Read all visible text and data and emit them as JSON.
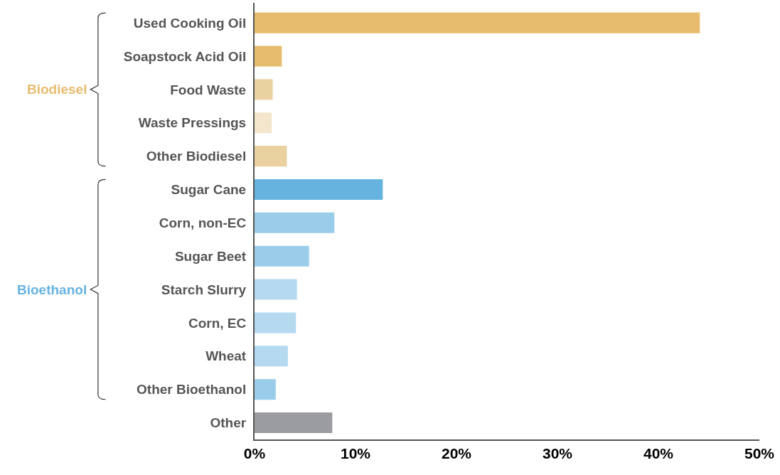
{
  "chart_data": {
    "type": "bar",
    "orientation": "horizontal",
    "categories": [
      "Used Cooking Oil",
      "Soapstock Acid Oil",
      "Food Waste",
      "Waste Pressings",
      "Other Biodiesel",
      "Sugar Cane",
      "Corn, non-EC",
      "Sugar Beet",
      "Starch Slurry",
      "Corn, EC",
      "Wheat",
      "Other Bioethanol",
      "Other"
    ],
    "series": [
      {
        "name": "Biodiesel",
        "color": "#e8bc6e",
        "colors": [
          "#e8bc6e",
          "#e8bc6e",
          "#ead2a0",
          "#f3e6cc",
          "#e9d2a0",
          null,
          null,
          null,
          null,
          null,
          null,
          null,
          null
        ],
        "values": [
          44.1,
          2.7,
          1.8,
          1.7,
          3.2,
          null,
          null,
          null,
          null,
          null,
          null,
          null,
          null
        ]
      },
      {
        "name": "Bioethanol",
        "color": "#66b3e0",
        "colors": [
          null,
          null,
          null,
          null,
          null,
          "#66b3e0",
          "#9acde9",
          "#9acde9",
          "#b5daef",
          "#b5daef",
          "#b5daef",
          "#9acde9",
          null
        ],
        "values": [
          null,
          null,
          null,
          null,
          null,
          12.7,
          7.9,
          5.4,
          4.2,
          4.1,
          3.3,
          2.1,
          null
        ]
      },
      {
        "color": "#9b9c9f",
        "values": [
          null,
          null,
          null,
          null,
          null,
          null,
          null,
          null,
          null,
          null,
          null,
          null,
          7.7
        ]
      }
    ],
    "xlim": [
      0,
      50
    ],
    "xticks": [
      {
        "value": 0,
        "label": "0%"
      },
      {
        "value": 10,
        "label": "10%"
      },
      {
        "value": 20,
        "label": "20%"
      },
      {
        "value": 30,
        "label": "30%"
      },
      {
        "value": 40,
        "label": "40%"
      },
      {
        "value": 50,
        "label": "50%"
      }
    ],
    "grid": false
  }
}
